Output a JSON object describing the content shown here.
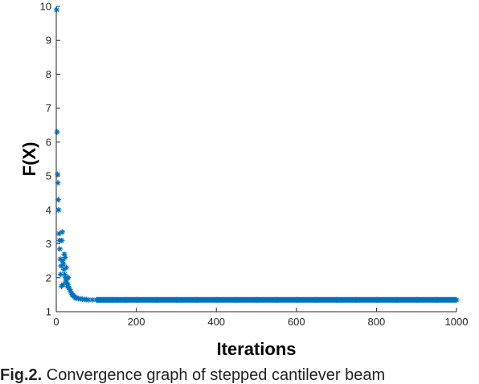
{
  "chart_data": {
    "type": "scatter",
    "marker": "asterisk",
    "color": "#0072BD",
    "xlabel": "Iterations",
    "ylabel": "F(X)",
    "xlim": [
      0,
      1000
    ],
    "ylim": [
      1,
      10
    ],
    "xticks": [
      0,
      200,
      400,
      600,
      800,
      1000
    ],
    "yticks": [
      1,
      2,
      3,
      4,
      5,
      6,
      7,
      8,
      9,
      10
    ],
    "grid": false,
    "series": [
      {
        "x": [
          1,
          2,
          3,
          4,
          5,
          6,
          7,
          8,
          9,
          10,
          11,
          12,
          13,
          14,
          15,
          16,
          17,
          18,
          19,
          20,
          21,
          22,
          23,
          24,
          25,
          26,
          27,
          28,
          29,
          30,
          32,
          34,
          36,
          38,
          40,
          42,
          45,
          48,
          50,
          55,
          60,
          65,
          70,
          75,
          80,
          90,
          100,
          110,
          120,
          130,
          140,
          150,
          175,
          200,
          250,
          300,
          350,
          400,
          450,
          500,
          550,
          600,
          650,
          700,
          750,
          800,
          850,
          900,
          950,
          1000
        ],
        "y": [
          9.9,
          6.3,
          5.05,
          4.8,
          4.3,
          4.0,
          3.3,
          3.1,
          2.85,
          2.55,
          2.1,
          2.35,
          1.75,
          3.1,
          3.35,
          2.5,
          1.8,
          2.4,
          2.25,
          2.7,
          2.1,
          2.6,
          2.0,
          1.9,
          2.3,
          1.85,
          2.0,
          1.75,
          1.8,
          2.0,
          1.7,
          1.65,
          1.6,
          1.55,
          1.5,
          1.48,
          1.45,
          1.42,
          1.4,
          1.39,
          1.38,
          1.37,
          1.36,
          1.36,
          1.35,
          1.35,
          1.35,
          1.35,
          1.35,
          1.35,
          1.35,
          1.35,
          1.35,
          1.35,
          1.35,
          1.35,
          1.35,
          1.35,
          1.35,
          1.35,
          1.35,
          1.35,
          1.35,
          1.35,
          1.35,
          1.35,
          1.35,
          1.35,
          1.35,
          1.35
        ]
      }
    ]
  },
  "caption": {
    "label": "Fig.2.",
    "text": " Convergence graph of stepped cantilever beam"
  }
}
